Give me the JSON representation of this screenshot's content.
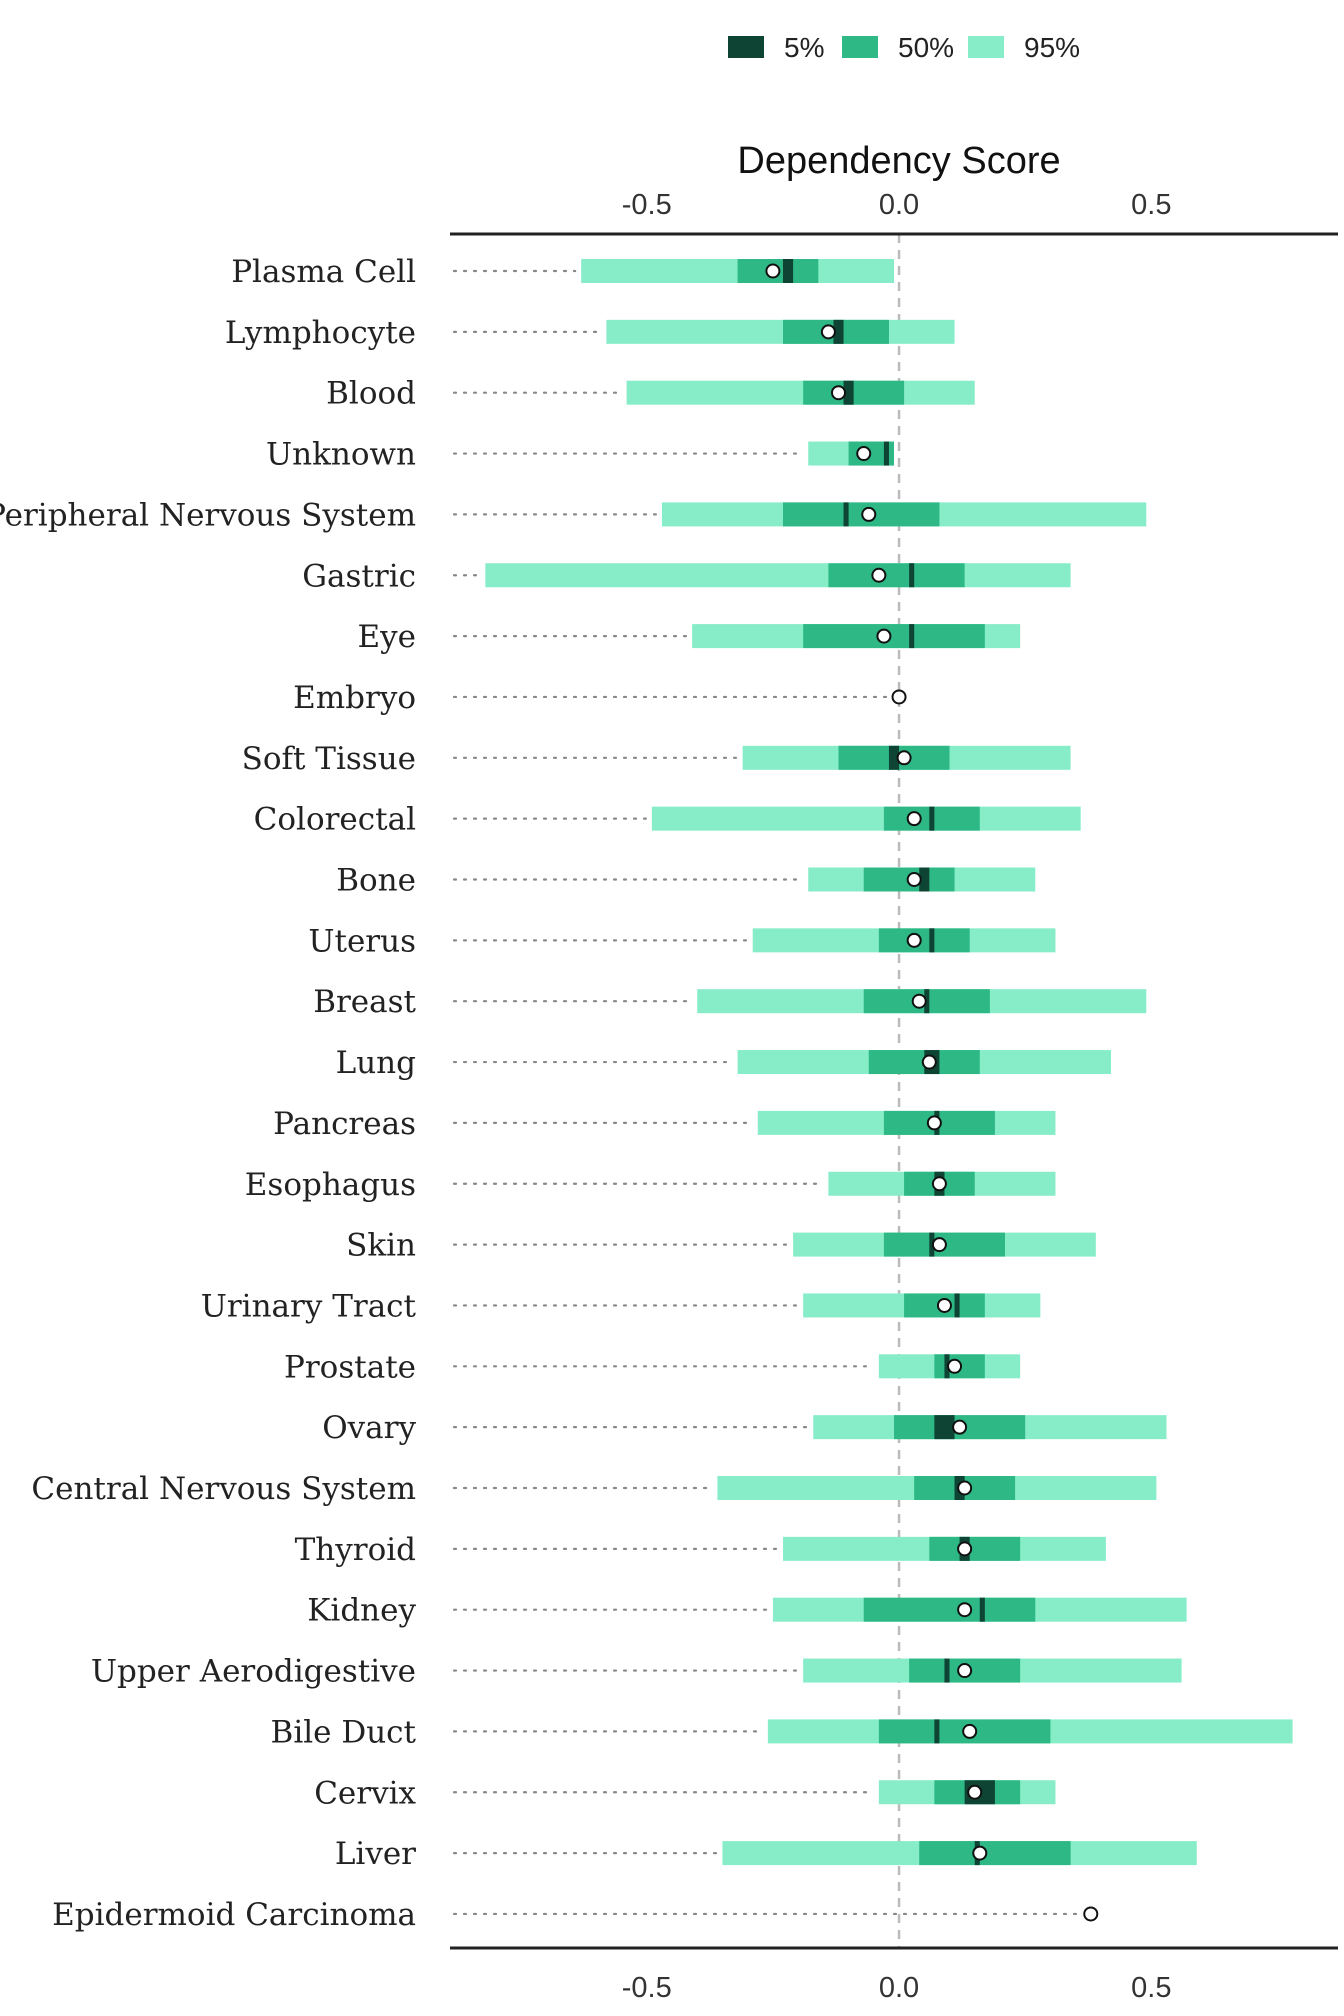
{
  "colors": {
    "range_95": "#86EDC8",
    "range_50": "#2DB886",
    "range_5": "#0E4433",
    "median_fill": "#ffffff",
    "median_stroke": "#111111",
    "zero_line": "#bbbbbb",
    "dotted_guide": "#888888",
    "axis_line": "#222222"
  },
  "chart_data": {
    "type": "range-bar",
    "title": "Dependency Score",
    "xlim": [
      -0.89,
      0.87
    ],
    "x_ticks": [
      -0.5,
      0.0,
      0.5
    ],
    "x_tick_labels": [
      "-0.5",
      "0.0",
      "0.5"
    ],
    "legend": {
      "position": "top-right",
      "entries": [
        {
          "label": "5%",
          "color_key": "range_5"
        },
        {
          "label": "50%",
          "color_key": "range_50"
        },
        {
          "label": "95%",
          "color_key": "range_95"
        }
      ]
    },
    "categories": [
      "Plasma Cell",
      "Lymphocyte",
      "Blood",
      "Unknown",
      "Peripheral Nervous System",
      "Gastric",
      "Eye",
      "Embryo",
      "Soft Tissue",
      "Colorectal",
      "Bone",
      "Uterus",
      "Breast",
      "Lung",
      "Pancreas",
      "Esophagus",
      "Skin",
      "Urinary Tract",
      "Prostate",
      "Ovary",
      "Central Nervous System",
      "Thyroid",
      "Kidney",
      "Upper Aerodigestive",
      "Bile Duct",
      "Cervix",
      "Liver",
      "Epidermoid Carcinoma"
    ],
    "series": [
      {
        "name": "95%",
        "values": [
          [
            -0.63,
            -0.01
          ],
          [
            -0.58,
            0.11
          ],
          [
            -0.54,
            0.15
          ],
          [
            -0.18,
            -0.01
          ],
          [
            -0.47,
            0.49
          ],
          [
            -0.82,
            0.34
          ],
          [
            -0.41,
            0.24
          ],
          null,
          [
            -0.31,
            0.34
          ],
          [
            -0.49,
            0.36
          ],
          [
            -0.18,
            0.27
          ],
          [
            -0.29,
            0.31
          ],
          [
            -0.4,
            0.49
          ],
          [
            -0.32,
            0.42
          ],
          [
            -0.28,
            0.31
          ],
          [
            -0.14,
            0.31
          ],
          [
            -0.21,
            0.39
          ],
          [
            -0.19,
            0.28
          ],
          [
            -0.04,
            0.24
          ],
          [
            -0.17,
            0.53
          ],
          [
            -0.36,
            0.51
          ],
          [
            -0.23,
            0.41
          ],
          [
            -0.25,
            0.57
          ],
          [
            -0.19,
            0.56
          ],
          [
            -0.26,
            0.78
          ],
          [
            -0.04,
            0.31
          ],
          [
            -0.35,
            0.59
          ],
          null
        ]
      },
      {
        "name": "50%",
        "values": [
          [
            -0.32,
            -0.16
          ],
          [
            -0.23,
            -0.02
          ],
          [
            -0.19,
            0.01
          ],
          [
            -0.1,
            -0.01
          ],
          [
            -0.23,
            0.08
          ],
          [
            -0.14,
            0.13
          ],
          [
            -0.19,
            0.17
          ],
          null,
          [
            -0.12,
            0.1
          ],
          [
            -0.03,
            0.16
          ],
          [
            -0.07,
            0.11
          ],
          [
            -0.04,
            0.14
          ],
          [
            -0.07,
            0.18
          ],
          [
            -0.06,
            0.16
          ],
          [
            -0.03,
            0.19
          ],
          [
            0.01,
            0.15
          ],
          [
            -0.03,
            0.21
          ],
          [
            0.01,
            0.17
          ],
          [
            0.07,
            0.17
          ],
          [
            -0.01,
            0.25
          ],
          [
            0.03,
            0.23
          ],
          [
            0.06,
            0.24
          ],
          [
            -0.07,
            0.27
          ],
          [
            0.02,
            0.24
          ],
          [
            -0.04,
            0.3
          ],
          [
            0.07,
            0.24
          ],
          [
            0.04,
            0.34
          ],
          null
        ]
      },
      {
        "name": "5%",
        "values": [
          [
            -0.23,
            -0.21
          ],
          [
            -0.13,
            -0.11
          ],
          [
            -0.11,
            -0.09
          ],
          [
            -0.03,
            -0.02
          ],
          [
            -0.11,
            -0.1
          ],
          [
            0.02,
            0.03
          ],
          [
            0.02,
            0.03
          ],
          null,
          [
            -0.02,
            0.0
          ],
          [
            0.06,
            0.07
          ],
          [
            0.04,
            0.06
          ],
          [
            0.06,
            0.07
          ],
          [
            0.05,
            0.06
          ],
          [
            0.05,
            0.08
          ],
          [
            0.07,
            0.08
          ],
          [
            0.07,
            0.09
          ],
          [
            0.06,
            0.07
          ],
          [
            0.11,
            0.12
          ],
          [
            0.09,
            0.1
          ],
          [
            0.07,
            0.11
          ],
          [
            0.11,
            0.13
          ],
          [
            0.12,
            0.14
          ],
          [
            0.16,
            0.17
          ],
          [
            0.09,
            0.1
          ],
          [
            0.07,
            0.08
          ],
          [
            0.13,
            0.19
          ],
          [
            0.15,
            0.16
          ],
          null
        ]
      }
    ],
    "median": [
      -0.25,
      -0.14,
      -0.12,
      -0.07,
      -0.06,
      -0.04,
      -0.03,
      0.0,
      0.01,
      0.03,
      0.03,
      0.03,
      0.04,
      0.06,
      0.07,
      0.08,
      0.08,
      0.09,
      0.11,
      0.12,
      0.13,
      0.13,
      0.13,
      0.13,
      0.14,
      0.15,
      0.16,
      0.38
    ]
  }
}
